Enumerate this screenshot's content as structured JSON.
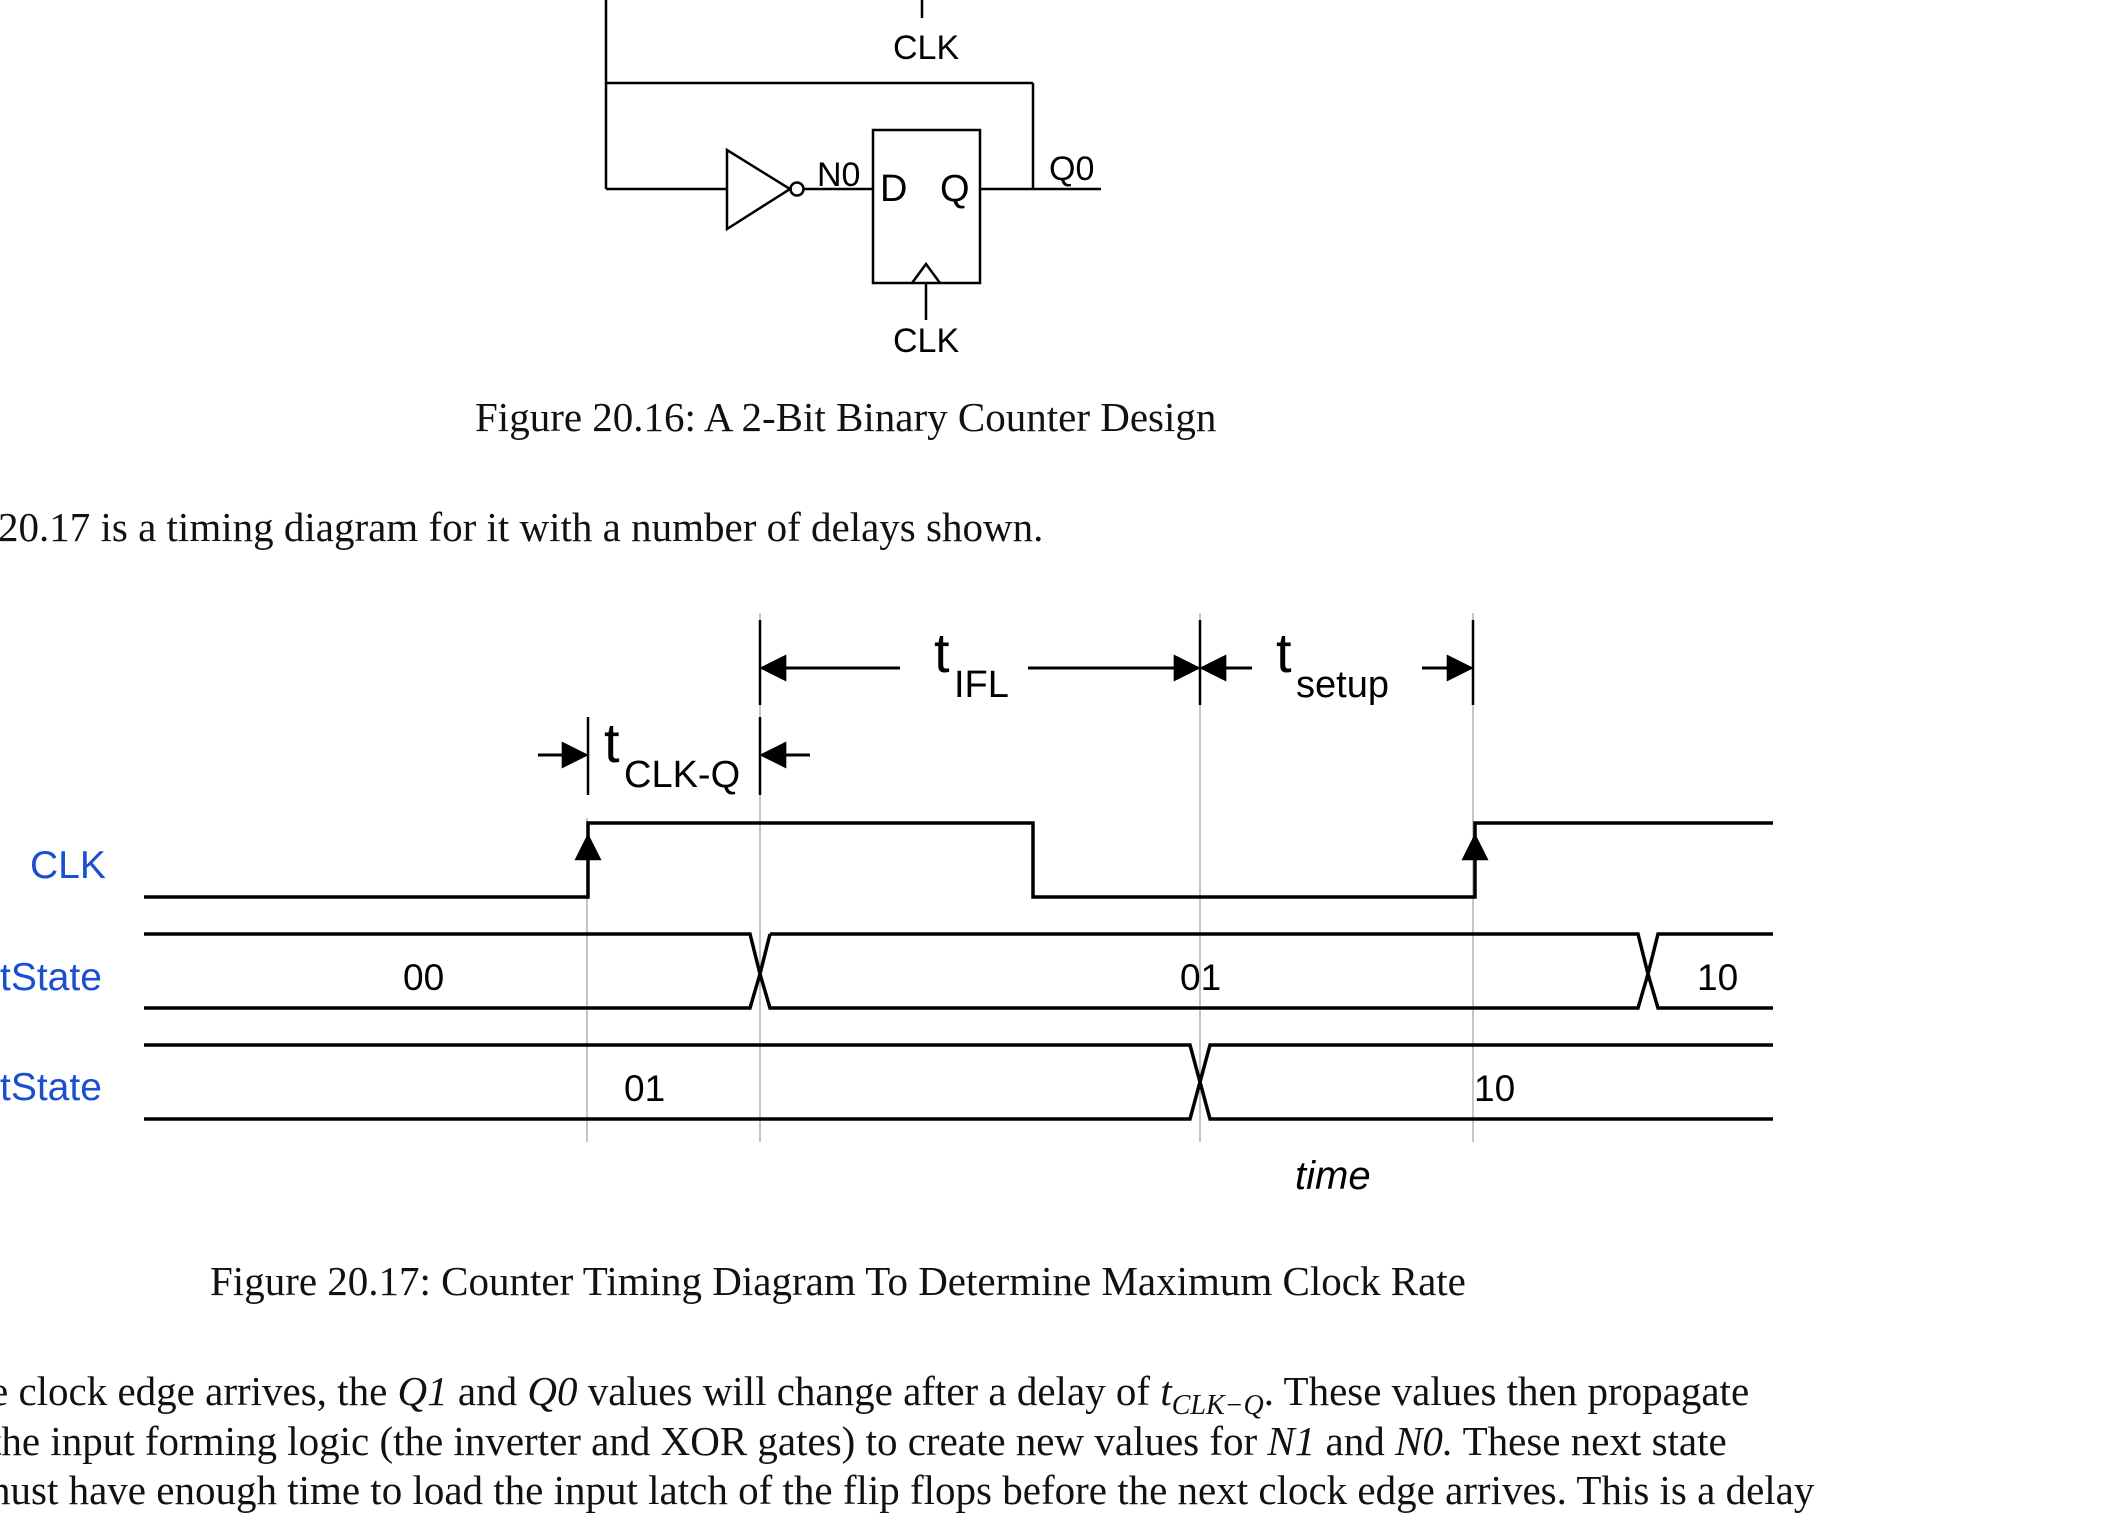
{
  "circuit": {
    "clk_top_label": "CLK",
    "clk_bottom_label": "CLK",
    "n0_label": "N0",
    "q0_label": "Q0",
    "ff_d_label": "D",
    "ff_q_label": "Q"
  },
  "fig16_caption": "Figure 20.16: A 2-Bit Binary Counter Design",
  "intro_text": "20.17 is a timing diagram for it with a number of delays shown.",
  "timing": {
    "signals": [
      "CLK",
      "tState",
      "tState"
    ],
    "present_values": [
      "00",
      "01",
      "10"
    ],
    "next_values": [
      "01",
      "10"
    ],
    "t_main": "t",
    "clkq_sub": "CLK-Q",
    "ifl_sub": "IFL",
    "setup_sub": "setup",
    "time_label": "time"
  },
  "fig17_caption": "Figure 20.17: Counter Timing Diagram To Determine Maximum Clock Rate",
  "body": {
    "line1_a": "e clock edge arrives, the ",
    "line1_q1": "Q1",
    "line1_b": " and ",
    "line1_q0": "Q0",
    "line1_c": " values will change after a delay of ",
    "line1_t": "t",
    "line1_tsub": "CLK−Q",
    "line1_d": ". These values then propagate",
    "line2_a": " the input forming logic (the inverter and XOR gates) to create new values for ",
    "line2_n1": "N1",
    "line2_b": " and ",
    "line2_n0": "N0.",
    "line2_c": " These next state",
    "line3": "nust have enough time to load the input latch of the flip flops before the next clock edge arrives. This is a delay"
  }
}
